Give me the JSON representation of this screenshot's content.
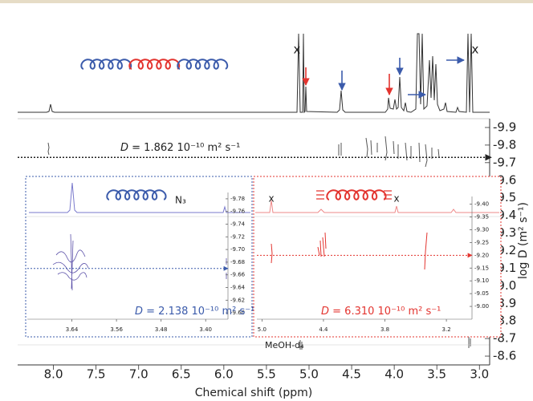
{
  "chart_data": [
    {
      "type": "dosy",
      "color": "#222222",
      "x_label": "Chemical shift (ppm)",
      "y_label": "log D (m² s⁻¹)",
      "xlim": [
        8.42,
        2.88
      ],
      "ylim": [
        -9.95,
        -8.55
      ],
      "xticks": [
        {
          "value": 8,
          "label": "8.0"
        },
        7.5,
        {
          "value": 7,
          "label": "7.0"
        },
        6.5,
        {
          "value": 6,
          "label": "6.0"
        },
        5.5,
        {
          "value": 5,
          "label": "5.0"
        },
        4.5,
        {
          "value": 4,
          "label": "4.0"
        },
        3.5,
        {
          "value": 3,
          "label": "3.0"
        }
      ],
      "yticks": [
        -9.9,
        -9.8,
        -9.7,
        -9.6,
        -9.5,
        -9.4,
        -9.3,
        -9.2,
        -9.1,
        {
          "value": -9,
          "label": "-9.0"
        },
        -8.9,
        -8.8,
        -8.7,
        -8.6
      ],
      "reference_line": -9.73,
      "annotation": {
        "symbol": "D",
        "text": " = 1.862 10⁻¹⁰ m² s⁻¹"
      },
      "peak_marks": [
        "x",
        "x"
      ],
      "solvent_label": "MeOH-d₄"
    },
    {
      "type": "dosy",
      "color": "#3b5bab",
      "xlim": [
        3.72,
        3.36
      ],
      "ylim": [
        -9.79,
        -9.59
      ],
      "xticks": [
        3.64,
        3.56,
        3.48,
        {
          "value": 3.4,
          "label": "3.40"
        }
      ],
      "yticks": [
        -9.78,
        -9.76,
        -9.74,
        -9.72,
        {
          "value": -9.7,
          "label": "-9.70"
        },
        -9.68,
        -9.66,
        -9.64,
        -9.62,
        {
          "value": -9.6,
          "label": "-9.60"
        }
      ],
      "reference_line": -9.67,
      "annotation": {
        "symbol": "D",
        "text": " = 2.138 10⁻¹⁰ m² s⁻¹"
      },
      "end_group": "N₃"
    },
    {
      "type": "dosy",
      "color": "#e3342f",
      "xlim": [
        5.05,
        2.95
      ],
      "ylim": [
        -9.43,
        -8.95
      ],
      "xticks": [
        {
          "value": 5,
          "label": "5.0"
        },
        4.4,
        3.8,
        3.2
      ],
      "yticks": [
        {
          "value": -9.4,
          "label": "-9.40"
        },
        -9.35,
        {
          "value": -9.3,
          "label": "-9.30"
        },
        -9.25,
        {
          "value": -9.2,
          "label": "-9.20"
        },
        -9.15,
        {
          "value": -9.1,
          "label": "-9.10"
        },
        -9.05,
        {
          "value": -9,
          "label": "-9.00"
        }
      ],
      "reference_line": -9.2,
      "annotation": {
        "symbol": "D",
        "text": " = 6.310 10⁻¹⁰ m² s⁻¹"
      },
      "peak_marks": [
        "x",
        "x"
      ]
    }
  ]
}
